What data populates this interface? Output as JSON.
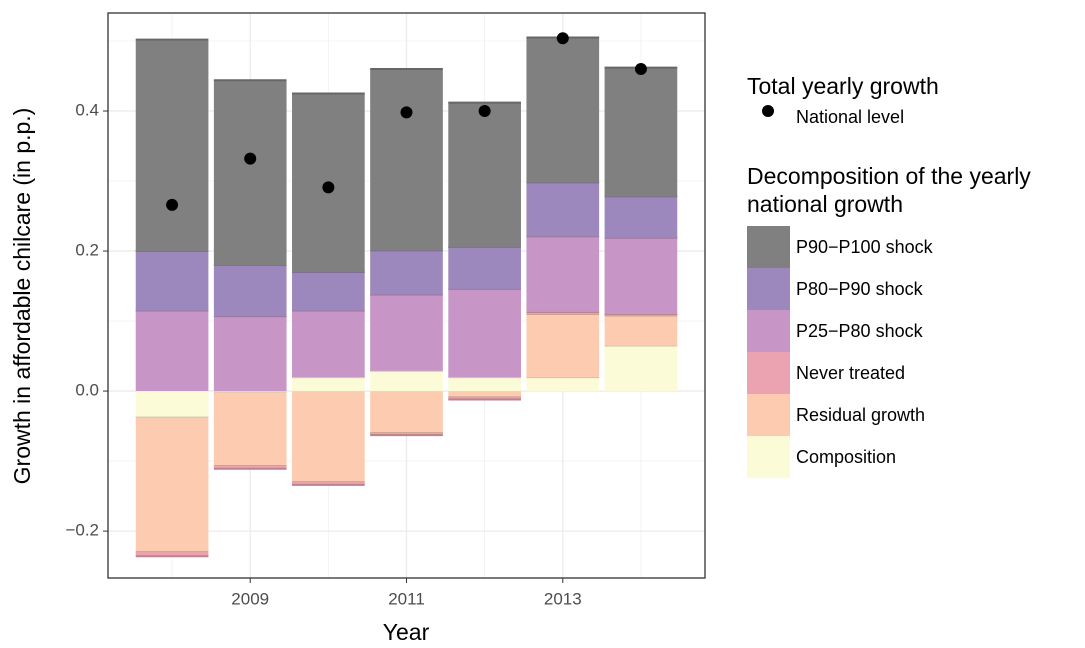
{
  "chart_data": {
    "type": "bar",
    "x_label": "Year",
    "y_label": "Growth in affordable chilcare (in p.p.)",
    "x": [
      2008,
      2009,
      2010,
      2011,
      2012,
      2013,
      2014
    ],
    "xlim": [
      2007.18,
      2014.82
    ],
    "xticks": [
      2009,
      2011,
      2013
    ],
    "ylim": [
      -0.267,
      0.54
    ],
    "yticks": [
      {
        "value": -0.2,
        "label": "−0.2"
      },
      {
        "value": 0,
        "label": "0.0"
      },
      0.2,
      0.4
    ],
    "grid": true,
    "points_legend_title": "Total yearly growth",
    "points": {
      "name": "National level",
      "color": "#000000",
      "values": [
        0.266,
        0.332,
        0.291,
        0.398,
        0.4,
        0.504,
        0.46
      ]
    },
    "series_legend_title": "Decomposition of the yearly national growth",
    "series": [
      {
        "name": "Composition",
        "color": "#fbfbd8",
        "values": [
          -0.038,
          -0.002,
          0.02,
          0.029,
          0.02,
          0.02,
          0.065
        ]
      },
      {
        "name": "Residual growth",
        "color": "#fdccb0",
        "values": [
          -0.192,
          -0.105,
          -0.13,
          -0.06,
          -0.009,
          0.09,
          0.043
        ]
      },
      {
        "name": "Never treated",
        "color": "#eba3b1",
        "values": [
          -0.006,
          -0.004,
          -0.004,
          -0.003,
          -0.003,
          0.003,
          0.002
        ]
      },
      {
        "name": "P25−P80 shock",
        "color": "#c795c6",
        "values": [
          0.115,
          0.107,
          0.095,
          0.109,
          0.126,
          0.108,
          0.109
        ]
      },
      {
        "name": "P80−P90 shock",
        "color": "#9d88bd",
        "values": [
          0.085,
          0.073,
          0.055,
          0.063,
          0.06,
          0.077,
          0.059
        ]
      },
      {
        "name": "P90−P100 shock",
        "color": "#808080",
        "values": [
          0.302,
          0.264,
          0.255,
          0.259,
          0.206,
          0.207,
          0.184
        ]
      }
    ]
  }
}
